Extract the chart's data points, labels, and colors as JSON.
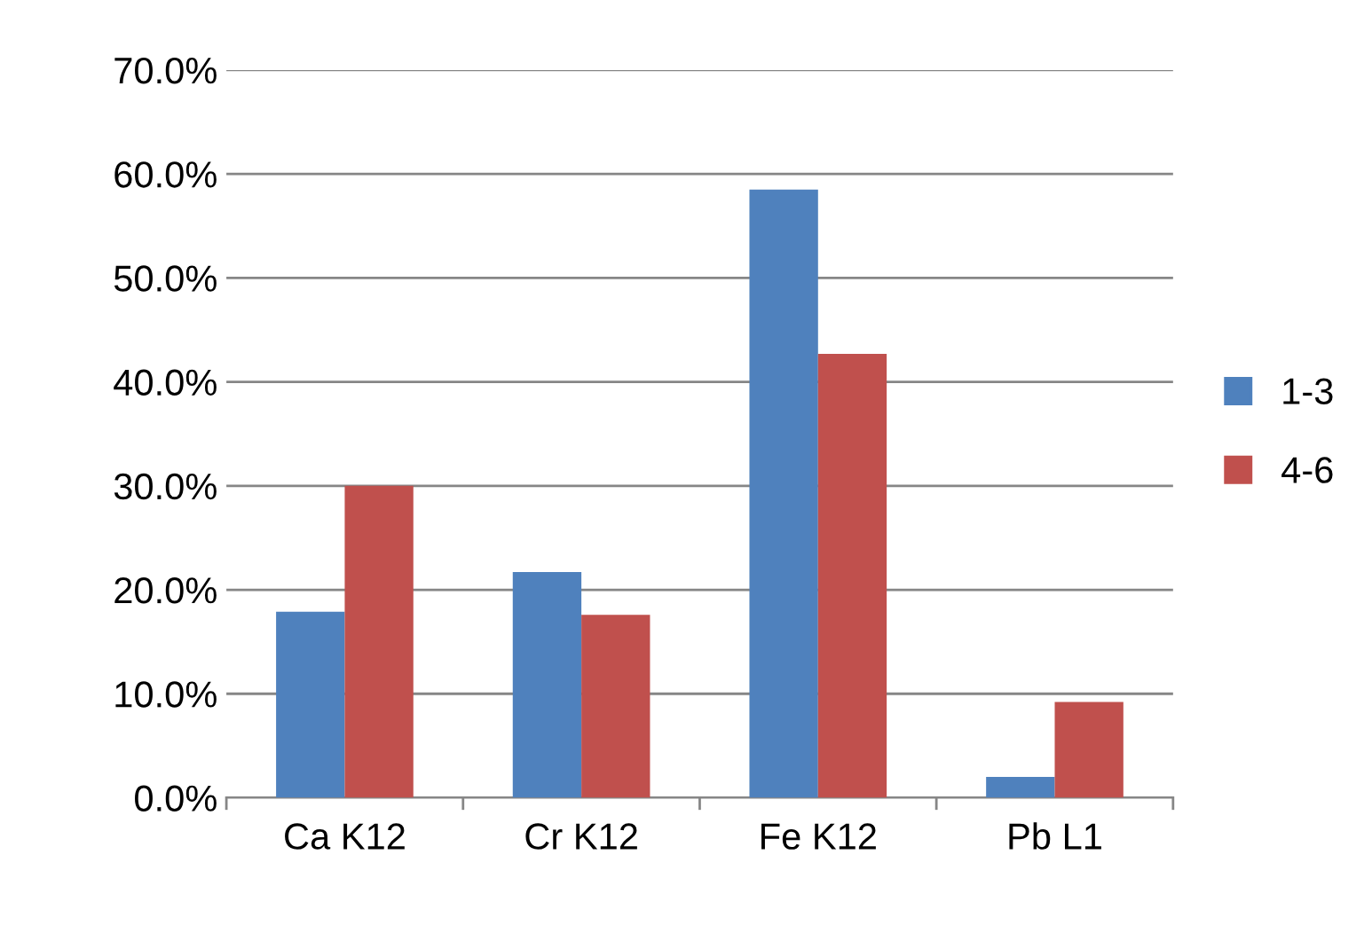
{
  "chart_data": {
    "type": "bar",
    "categories": [
      "Ca K12",
      "Cr K12",
      "Fe K12",
      "Pb L1"
    ],
    "series": [
      {
        "name": "1-3",
        "color": "#4f81bd",
        "values": [
          17.9,
          21.7,
          58.5,
          2.0
        ]
      },
      {
        "name": "4-6",
        "color": "#c0504d",
        "values": [
          30.0,
          17.6,
          42.7,
          9.2
        ]
      }
    ],
    "ylim": [
      0,
      70
    ],
    "yticks": [
      {
        "value": 0,
        "label": "0.0%"
      },
      {
        "value": 10,
        "label": "10.0%"
      },
      {
        "value": 20,
        "label": "20.0%"
      },
      {
        "value": 30,
        "label": "30.0%"
      },
      {
        "value": 40,
        "label": "40.0%"
      },
      {
        "value": 50,
        "label": "50.0%"
      },
      {
        "value": 60,
        "label": "60.0%"
      },
      {
        "value": 70,
        "label": "70.0%"
      }
    ],
    "grid": "y",
    "legend": "right"
  }
}
